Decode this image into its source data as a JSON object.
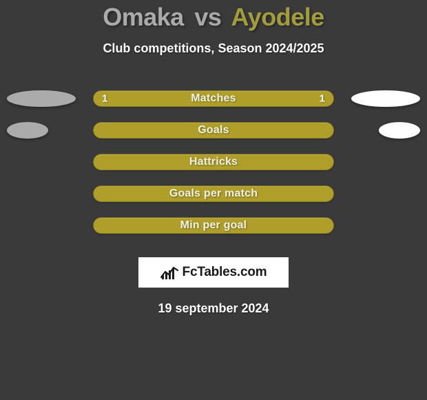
{
  "title": {
    "player1": "Omaka",
    "vs": "vs",
    "player2": "Ayodele",
    "player1_color": "#ababab",
    "vs_color": "#a9a9a9",
    "player2_color": "#a39c3f"
  },
  "subtitle": "Club competitions, Season 2024/2025",
  "pill_color": "#af9f2a",
  "ellipse_left_color": "#ababab",
  "ellipse_right_color": "#ffffff",
  "rows": [
    {
      "label": "Matches",
      "left": "1",
      "right": "1",
      "left_w": 100,
      "right_w": 100
    },
    {
      "label": "Goals",
      "left": "",
      "right": "",
      "left_w": 60,
      "right_w": 60
    },
    {
      "label": "Hattricks",
      "left": "",
      "right": "",
      "left_w": 0,
      "right_w": 0
    },
    {
      "label": "Goals per match",
      "left": "",
      "right": "",
      "left_w": 0,
      "right_w": 0
    },
    {
      "label": "Min per goal",
      "left": "",
      "right": "",
      "left_w": 0,
      "right_w": 0
    }
  ],
  "brand": "FcTables.com",
  "date": "19 september 2024",
  "background_color": "#3a3a3a"
}
